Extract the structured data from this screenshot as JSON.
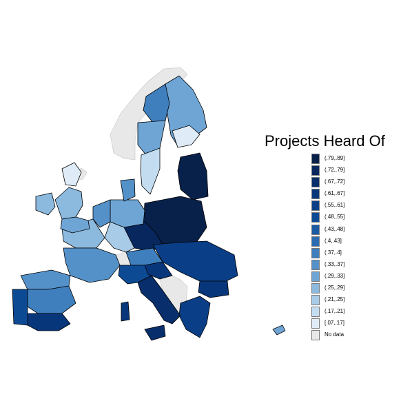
{
  "map": {
    "title": "Projects Heard Of",
    "no_data_color": "#e8e8e8",
    "border_color": "#000000",
    "legend": [
      {
        "label": "(.79,.89]",
        "color": "#08214a"
      },
      {
        "label": "(.72,.79]",
        "color": "#08275e"
      },
      {
        "label": "(.67,.72]",
        "color": "#082e6b"
      },
      {
        "label": "(.61,.67]",
        "color": "#08367a"
      },
      {
        "label": "(.55,.61]",
        "color": "#0a3f87"
      },
      {
        "label": "(.48,.55]",
        "color": "#0d4a94"
      },
      {
        "label": "(.43,.48]",
        "color": "#1a5aa3"
      },
      {
        "label": "(.4,.43]",
        "color": "#2b6cb0"
      },
      {
        "label": "(.37,.4]",
        "color": "#3f7fbd"
      },
      {
        "label": "(.33,.37]",
        "color": "#5591c9"
      },
      {
        "label": "(.29,.33]",
        "color": "#6fa5d4"
      },
      {
        "label": "(.25,.29]",
        "color": "#8cb9de"
      },
      {
        "label": "(.21,.25]",
        "color": "#a8cbe7"
      },
      {
        "label": "(.17,.21]",
        "color": "#c3dcf0"
      },
      {
        "label": "[.07,.17]",
        "color": "#dfecf8"
      },
      {
        "label": "No data",
        "color": "#e8e8e8"
      }
    ]
  }
}
